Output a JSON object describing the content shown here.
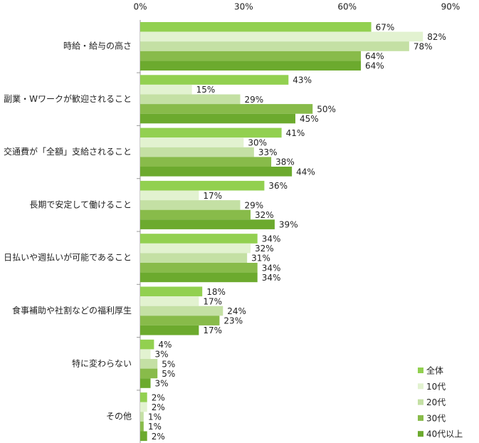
{
  "chart_data": {
    "type": "hbar",
    "categories": [
      "時給・給与の高さ",
      "副業・Wワークが歓迎されること",
      "交通費が「全額」支給されること",
      "長期で安定して働けること",
      "日払いや週払いが可能であること",
      "食事補助や社割などの福利厚生",
      "特に変わらない",
      "その他"
    ],
    "series": [
      {
        "name": "全体",
        "color": "#92d050",
        "values": [
          67,
          43,
          41,
          36,
          34,
          18,
          4,
          2
        ],
        "value_labels": [
          "67%",
          "43%",
          "41%",
          "36%",
          "34%",
          "18%",
          "4%",
          "2%"
        ]
      },
      {
        "name": "10代",
        "color": "#e2f2d0",
        "values": [
          82,
          15,
          30,
          17,
          32,
          17,
          3,
          2
        ],
        "value_labels": [
          "82%",
          "15%",
          "30%",
          "17%",
          "32%",
          "17%",
          "3%",
          "2%"
        ]
      },
      {
        "name": "20代",
        "color": "#c4e0a4",
        "values": [
          78,
          29,
          33,
          29,
          31,
          24,
          5,
          1
        ],
        "value_labels": [
          "78%",
          "29%",
          "33%",
          "29%",
          "31%",
          "24%",
          "5%",
          "1%"
        ]
      },
      {
        "name": "30代",
        "color": "#88bb4a",
        "values": [
          64,
          50,
          38,
          32,
          34,
          23,
          5,
          1
        ],
        "value_labels": [
          "64%",
          "50%",
          "38%",
          "32%",
          "34%",
          "23%",
          "5%",
          "1%"
        ]
      },
      {
        "name": "40代以上",
        "color": "#6caa2e",
        "values": [
          64,
          45,
          44,
          39,
          34,
          17,
          3,
          2
        ],
        "value_labels": [
          "64%",
          "45%",
          "44%",
          "39%",
          "34%",
          "17%",
          "3%",
          "2%"
        ]
      }
    ],
    "xlim": [
      0,
      90
    ],
    "xticks": [
      {
        "value": 0,
        "label": "0%"
      },
      {
        "value": 30,
        "label": "30%"
      },
      {
        "value": 60,
        "label": "60%"
      },
      {
        "value": 90,
        "label": "90%"
      }
    ],
    "grid": false,
    "legend": "bottom-right"
  }
}
